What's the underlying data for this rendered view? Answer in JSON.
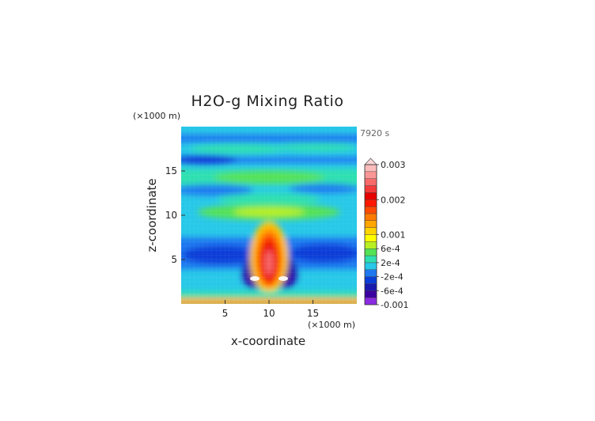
{
  "chart_data": {
    "type": "heatmap",
    "title": "H2O-g Mixing Ratio",
    "xlabel": "x-coordinate",
    "ylabel": "z-coordinate",
    "x_unit": "(×1000 m)",
    "y_unit": "(×1000 m)",
    "time_label": "7920 s",
    "xlim": [
      0,
      20
    ],
    "ylim": [
      0,
      20
    ],
    "x_ticks": [
      "5",
      "10",
      "15"
    ],
    "x_tick_values": [
      5,
      10,
      15
    ],
    "y_ticks": [
      "5",
      "10",
      "15"
    ],
    "y_tick_values": [
      5,
      10,
      15
    ],
    "colorbar": {
      "range": [
        -0.001,
        0.003
      ],
      "labels": [
        "0.003",
        "0.002",
        "0.001",
        "6e-4",
        "2e-4",
        "-2e-4",
        "-6e-4",
        "-0.001"
      ],
      "label_values": [
        0.003,
        0.002,
        0.001,
        0.0006,
        0.0002,
        -0.0002,
        -0.0006,
        -0.001
      ],
      "levels": [
        -0.001,
        -0.0008,
        -0.0006,
        -0.0004,
        -0.0002,
        0,
        0.0002,
        0.0004,
        0.0006,
        0.0008,
        0.001,
        0.0012,
        0.0014,
        0.0016,
        0.0018,
        0.002,
        0.0022,
        0.0024,
        0.0026,
        0.0028,
        0.003
      ],
      "colors": [
        "#8a2be2",
        "#3b00a0",
        "#1a1ab0",
        "#0a3ed8",
        "#1f78f0",
        "#27c8e8",
        "#2ee0b0",
        "#54e254",
        "#b8ef22",
        "#ffff00",
        "#ffd400",
        "#ffa600",
        "#ff7a00",
        "#ff4a00",
        "#ff1800",
        "#e80000",
        "#f43a3a",
        "#f86a6a",
        "#fb9696",
        "#fdbcbc"
      ],
      "overflow_color": "#fdd6d6"
    }
  }
}
